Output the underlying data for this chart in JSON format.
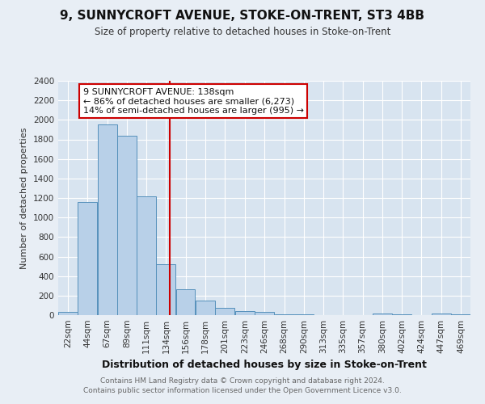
{
  "title": "9, SUNNYCROFT AVENUE, STOKE-ON-TRENT, ST3 4BB",
  "subtitle": "Size of property relative to detached houses in Stoke-on-Trent",
  "xlabel": "Distribution of detached houses by size in Stoke-on-Trent",
  "ylabel": "Number of detached properties",
  "bin_labels": [
    "22sqm",
    "44sqm",
    "67sqm",
    "89sqm",
    "111sqm",
    "134sqm",
    "156sqm",
    "178sqm",
    "201sqm",
    "223sqm",
    "246sqm",
    "268sqm",
    "290sqm",
    "313sqm",
    "335sqm",
    "357sqm",
    "380sqm",
    "402sqm",
    "424sqm",
    "447sqm",
    "469sqm"
  ],
  "bin_edges": [
    11,
    33,
    55.5,
    78,
    100,
    122.5,
    145,
    167,
    189.5,
    212,
    234.5,
    257,
    279.5,
    301.5,
    324,
    346,
    368.5,
    391,
    413,
    435.5,
    458,
    480
  ],
  "bar_heights": [
    30,
    1155,
    1950,
    1840,
    1220,
    520,
    265,
    148,
    78,
    45,
    35,
    8,
    5,
    3,
    2,
    2,
    20,
    5,
    3,
    20,
    5
  ],
  "bar_color": "#b8d0e8",
  "bar_edge_color": "#5590bb",
  "property_size": 138,
  "vline_color": "#cc0000",
  "ylim": [
    0,
    2400
  ],
  "yticks": [
    0,
    200,
    400,
    600,
    800,
    1000,
    1200,
    1400,
    1600,
    1800,
    2000,
    2200,
    2400
  ],
  "annotation_title": "9 SUNNYCROFT AVENUE: 138sqm",
  "annotation_line1": "← 86% of detached houses are smaller (6,273)",
  "annotation_line2": "14% of semi-detached houses are larger (995) →",
  "annotation_box_color": "#ffffff",
  "annotation_box_edge": "#cc0000",
  "footer_line1": "Contains HM Land Registry data © Crown copyright and database right 2024.",
  "footer_line2": "Contains public sector information licensed under the Open Government Licence v3.0.",
  "bg_color": "#e8eef5",
  "plot_bg_color": "#d8e4f0",
  "title_fontsize": 11,
  "subtitle_fontsize": 8.5,
  "xlabel_fontsize": 9,
  "ylabel_fontsize": 8,
  "tick_fontsize": 7.5,
  "footer_fontsize": 6.5
}
